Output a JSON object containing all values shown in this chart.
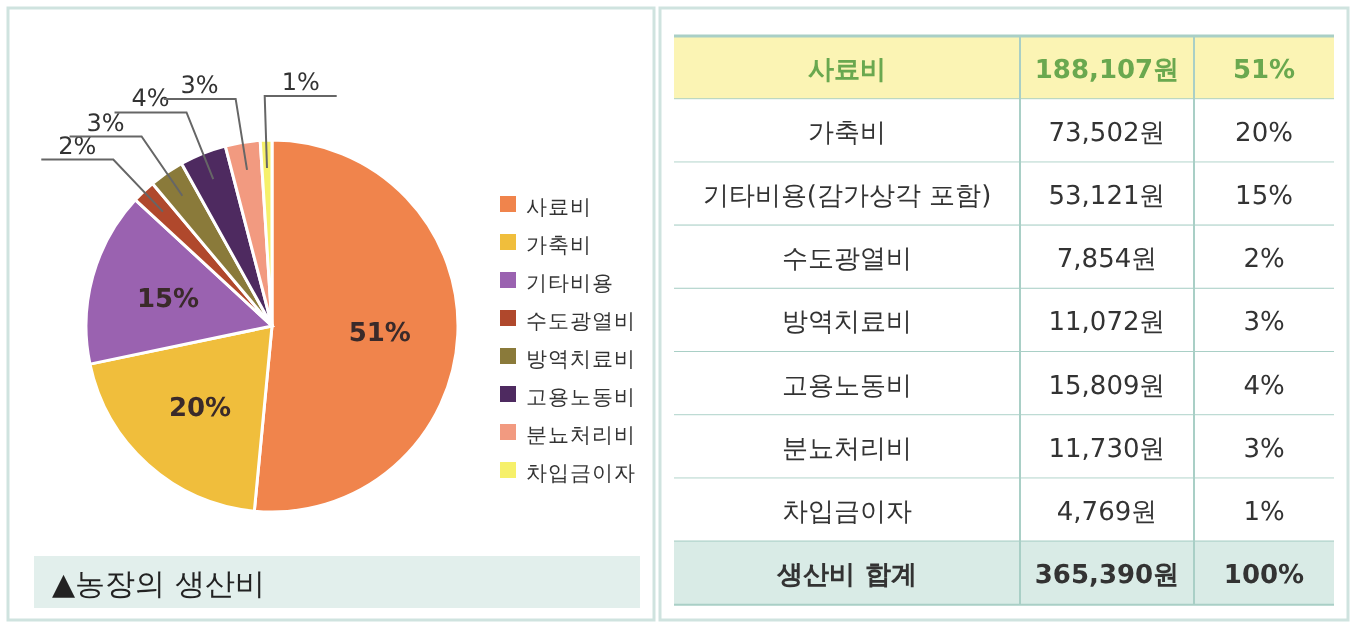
{
  "chart_data": {
    "type": "pie",
    "title": "▲농장의 생산비",
    "categories": [
      "사료비",
      "가축비",
      "기타비용",
      "수도광열비",
      "방역치료비",
      "고용노동비",
      "분뇨처리비",
      "차입금이자"
    ],
    "values": [
      51,
      20,
      15,
      2,
      3,
      4,
      3,
      1
    ],
    "colors": [
      "#f0844c",
      "#f0be3c",
      "#9a62b0",
      "#b0482c",
      "#8a7a3a",
      "#4e2a60",
      "#f29a80",
      "#f6f06a"
    ],
    "value_labels": [
      "51%",
      "20%",
      "15%",
      "2%",
      "3%",
      "4%",
      "3%",
      "1%"
    ],
    "legend": "right",
    "annotations": [
      "사료비",
      "188,107원",
      "51%",
      "가축비",
      "73,502원",
      "20%",
      "기타비용(감가상각 포함)",
      "53,121원",
      "15%",
      "수도광열비",
      "7,854원",
      "2%",
      "방역치료비",
      "11,072원",
      "3%",
      "고용노동비",
      "15,809원",
      "4%",
      "분뇨처리비",
      "11,730원",
      "3%",
      "차입금이자",
      "4,769원",
      "1%",
      "생산비 합계",
      "365,390원",
      "100%"
    ]
  }
}
